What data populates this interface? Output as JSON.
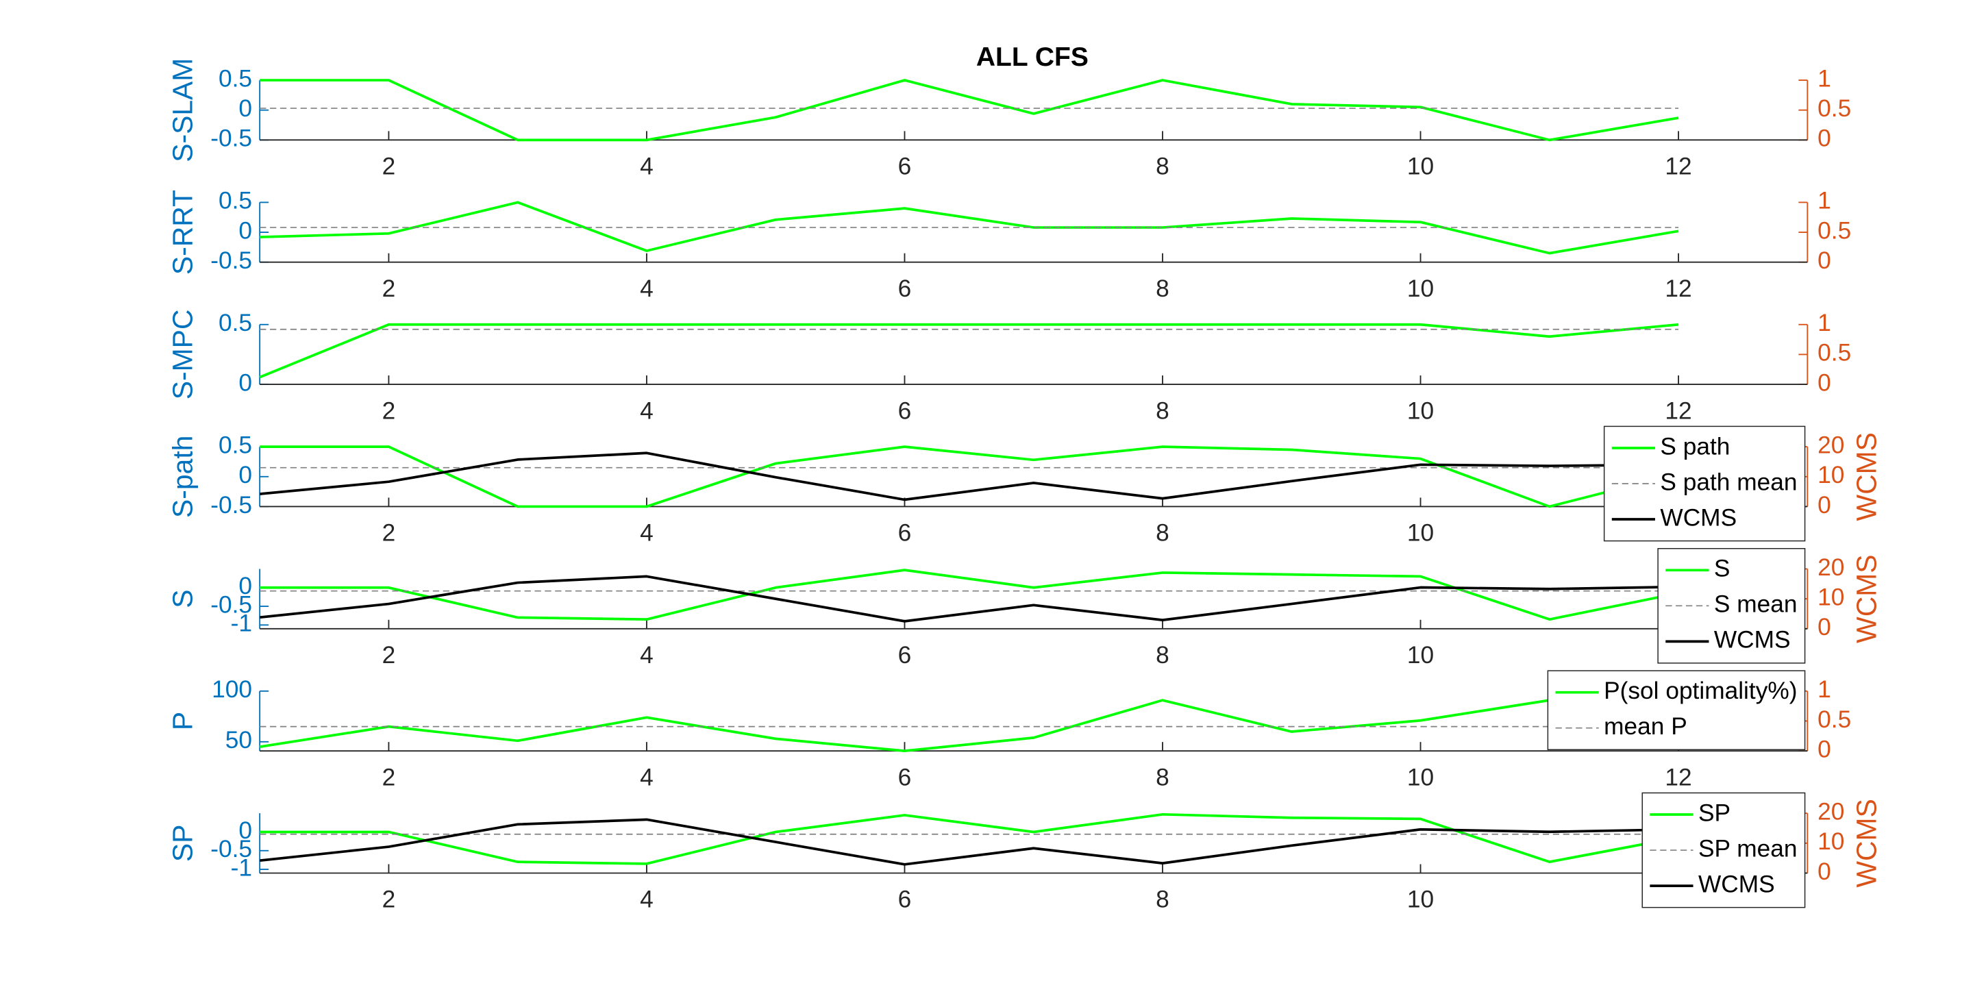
{
  "chart_data": [
    {
      "type": "line",
      "title": "ALL CFS",
      "ylabel": "S-SLAM",
      "x": [
        1,
        2,
        3,
        4,
        5,
        6,
        7,
        8,
        9,
        10,
        11,
        12
      ],
      "xlim": [
        1,
        13
      ],
      "xticks": [
        2,
        4,
        6,
        8,
        10,
        12
      ],
      "ylim": [
        -0.5,
        0.5
      ],
      "yticks": [
        -0.5,
        0,
        0.5
      ],
      "y2lim": [
        0,
        1
      ],
      "y2ticks": [
        0,
        0.5,
        1
      ],
      "grid": false,
      "series": [
        {
          "color": "#00ff00",
          "line_style": "solid",
          "values": [
            0.5,
            0.5,
            -0.5,
            -0.5,
            -0.12,
            0.5,
            -0.06,
            0.5,
            0.1,
            0.05,
            -0.5,
            -0.13
          ]
        },
        {
          "color": "#808080",
          "line_style": "dashed",
          "values": [
            0.03,
            0.03,
            0.03,
            0.03,
            0.03,
            0.03,
            0.03,
            0.03,
            0.03,
            0.03,
            0.03,
            0.03
          ]
        }
      ]
    },
    {
      "type": "line",
      "ylabel": "S-RRT",
      "x": [
        1,
        2,
        3,
        4,
        5,
        6,
        7,
        8,
        9,
        10,
        11,
        12
      ],
      "xlim": [
        1,
        13
      ],
      "xticks": [
        2,
        4,
        6,
        8,
        10,
        12
      ],
      "ylim": [
        -0.5,
        0.5
      ],
      "yticks": [
        -0.5,
        0,
        0.5
      ],
      "y2lim": [
        0,
        1
      ],
      "y2ticks": [
        0,
        0.5,
        1
      ],
      "grid": false,
      "series": [
        {
          "color": "#00ff00",
          "line_style": "solid",
          "values": [
            -0.08,
            -0.02,
            0.5,
            -0.31,
            0.21,
            0.4,
            0.08,
            0.08,
            0.23,
            0.17,
            -0.35,
            0.02
          ]
        },
        {
          "color": "#808080",
          "line_style": "dashed",
          "values": [
            0.08,
            0.08,
            0.08,
            0.08,
            0.08,
            0.08,
            0.08,
            0.08,
            0.08,
            0.08,
            0.08,
            0.08
          ]
        }
      ]
    },
    {
      "type": "line",
      "ylabel": "S-MPC",
      "x": [
        1,
        2,
        3,
        4,
        5,
        6,
        7,
        8,
        9,
        10,
        11,
        12
      ],
      "xlim": [
        1,
        13
      ],
      "xticks": [
        2,
        4,
        6,
        8,
        10,
        12
      ],
      "ylim": [
        0,
        0.5
      ],
      "yticks": [
        0,
        0.5
      ],
      "y2lim": [
        0,
        1
      ],
      "y2ticks": [
        0,
        0.5,
        1
      ],
      "grid": false,
      "series": [
        {
          "color": "#00ff00",
          "line_style": "solid",
          "values": [
            0.06,
            0.5,
            0.5,
            0.5,
            0.5,
            0.5,
            0.5,
            0.5,
            0.5,
            0.5,
            0.4,
            0.5
          ]
        },
        {
          "color": "#808080",
          "line_style": "dashed",
          "values": [
            0.46,
            0.46,
            0.46,
            0.46,
            0.46,
            0.46,
            0.46,
            0.46,
            0.46,
            0.46,
            0.46,
            0.46
          ]
        }
      ]
    },
    {
      "type": "line",
      "ylabel": "S-path",
      "y2label": "WCMS",
      "x": [
        1,
        2,
        3,
        4,
        5,
        6,
        7,
        8,
        9,
        10,
        11,
        12
      ],
      "xlim": [
        1,
        13
      ],
      "xticks": [
        2,
        4,
        6,
        8,
        10,
        12
      ],
      "ylim": [
        -0.5,
        0.5
      ],
      "yticks": [
        -0.5,
        0,
        0.5
      ],
      "y2lim": [
        0,
        20
      ],
      "y2ticks": [
        0,
        10,
        20
      ],
      "grid": false,
      "legend": "northeast",
      "series": [
        {
          "name": "S path",
          "color": "#00ff00",
          "line_style": "solid",
          "values": [
            0.5,
            0.5,
            -0.5,
            -0.5,
            0.22,
            0.5,
            0.28,
            0.5,
            0.45,
            0.3,
            -0.5,
            0.05
          ]
        },
        {
          "name": "S path mean",
          "color": "#808080",
          "line_style": "dashed",
          "values": [
            0.15,
            0.15,
            0.15,
            0.15,
            0.15,
            0.15,
            0.15,
            0.15,
            0.15,
            0.15,
            0.15,
            0.15
          ]
        },
        {
          "name": "WCMS",
          "color": "#000000",
          "line_style": "solid",
          "axis": "y2",
          "values": [
            4.2,
            8.3,
            15.7,
            17.9,
            9.8,
            2.3,
            7.9,
            2.7,
            8.5,
            14,
            13.6,
            14
          ]
        }
      ]
    },
    {
      "type": "line",
      "ylabel": "S",
      "y2label": "WCMS",
      "x": [
        1,
        2,
        3,
        4,
        5,
        6,
        7,
        8,
        9,
        10,
        11,
        12
      ],
      "xlim": [
        1,
        13
      ],
      "xticks": [
        2,
        4,
        6,
        8,
        10,
        12
      ],
      "ylim": [
        -1.1,
        0.5
      ],
      "yticks": [
        -1,
        -0.5,
        0
      ],
      "y2lim": [
        0,
        20
      ],
      "y2ticks": [
        0,
        10,
        20
      ],
      "grid": false,
      "legend": "northeast",
      "series": [
        {
          "name": "S",
          "color": "#00ff00",
          "line_style": "solid",
          "values": [
            0,
            0,
            -0.8,
            -0.85,
            0,
            0.47,
            0,
            0.4,
            0.35,
            0.3,
            -0.85,
            -0.15
          ]
        },
        {
          "name": "S mean",
          "color": "#808080",
          "line_style": "dashed",
          "values": [
            -0.09,
            -0.09,
            -0.09,
            -0.09,
            -0.09,
            -0.09,
            -0.09,
            -0.09,
            -0.09,
            -0.09,
            -0.09,
            -0.09
          ]
        },
        {
          "name": "WCMS",
          "color": "#000000",
          "line_style": "solid",
          "axis": "y2",
          "values": [
            3.8,
            8.3,
            15.4,
            17.5,
            10,
            2.5,
            7.9,
            2.9,
            8.3,
            13.8,
            13.3,
            14
          ]
        }
      ]
    },
    {
      "type": "line",
      "ylabel": "P",
      "x": [
        1,
        2,
        3,
        4,
        5,
        6,
        7,
        8,
        9,
        10,
        11,
        12
      ],
      "xlim": [
        1,
        13
      ],
      "xticks": [
        2,
        4,
        6,
        8,
        10,
        12
      ],
      "ylim": [
        41,
        100
      ],
      "yticks": [
        50,
        100
      ],
      "y2lim": [
        0,
        1
      ],
      "y2ticks": [
        0,
        0.5,
        1
      ],
      "grid": false,
      "legend": "northeast",
      "series": [
        {
          "name": "P(sol optimality%)",
          "color": "#00ff00",
          "line_style": "solid",
          "values": [
            45,
            65,
            51,
            74,
            53,
            41,
            54,
            91,
            60,
            71,
            91,
            84
          ]
        },
        {
          "name": "mean P",
          "color": "#808080",
          "line_style": "dashed",
          "values": [
            65,
            65,
            65,
            65,
            65,
            65,
            65,
            65,
            65,
            65,
            65,
            65
          ]
        }
      ]
    },
    {
      "type": "line",
      "ylabel": "SP",
      "y2label": "WCMS",
      "x": [
        1,
        2,
        3,
        4,
        5,
        6,
        7,
        8,
        9,
        10,
        11,
        12
      ],
      "xlim": [
        1,
        13
      ],
      "xticks": [
        2,
        4,
        6,
        8,
        10,
        12
      ],
      "ylim": [
        -1.1,
        0.5
      ],
      "yticks": [
        -1,
        -0.5,
        0
      ],
      "y2lim": [
        0,
        20
      ],
      "y2ticks": [
        0,
        10,
        20
      ],
      "grid": false,
      "legend": "northeast",
      "series": [
        {
          "name": "SP",
          "color": "#00ff00",
          "line_style": "solid",
          "values": [
            0,
            0,
            -0.8,
            -0.85,
            0,
            0.45,
            0,
            0.47,
            0.38,
            0.35,
            -0.8,
            -0.15
          ]
        },
        {
          "name": "SP mean",
          "color": "#808080",
          "line_style": "dashed",
          "values": [
            -0.06,
            -0.06,
            -0.06,
            -0.06,
            -0.06,
            -0.06,
            -0.06,
            -0.06,
            -0.06,
            -0.06,
            -0.06,
            -0.06
          ]
        },
        {
          "name": "WCMS",
          "color": "#000000",
          "line_style": "solid",
          "axis": "y2",
          "values": [
            4.2,
            8.8,
            16.3,
            17.9,
            10.4,
            2.9,
            8.3,
            3.3,
            9.2,
            14.6,
            13.8,
            14.6
          ]
        }
      ]
    }
  ]
}
